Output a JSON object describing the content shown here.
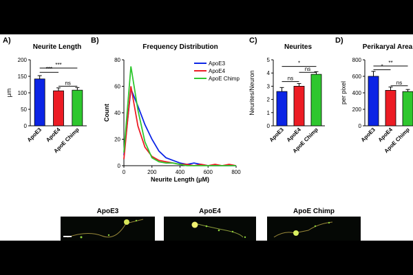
{
  "colors": {
    "apoe3": "#0b24e5",
    "apoe4": "#ec1c24",
    "chimp": "#2ec72e"
  },
  "chart_data": [
    {
      "panel": "A)",
      "type": "bar",
      "title": "Neurite Length",
      "ylabel": "μm",
      "categories": [
        "ApoE3",
        "ApoE4",
        "ApoE Chimp"
      ],
      "values": [
        142,
        106,
        108
      ],
      "errors": [
        10,
        9,
        8
      ],
      "ylim": [
        0,
        200
      ],
      "yticks": [
        0,
        50,
        100,
        150,
        200
      ],
      "significance": [
        {
          "from": 0,
          "to": 1,
          "label": "***",
          "y": 162
        },
        {
          "from": 0,
          "to": 2,
          "label": "***",
          "y": 175
        },
        {
          "from": 1,
          "to": 2,
          "label": "ns",
          "y": 120
        }
      ]
    },
    {
      "panel": "B)",
      "type": "line",
      "title": "Frequency Distribution",
      "xlabel": "Neurite Length (μM)",
      "ylabel": "Count",
      "xlim": [
        0,
        800
      ],
      "ylim": [
        0,
        80
      ],
      "xticks": [
        0,
        200,
        400,
        600,
        800
      ],
      "yticks": [
        0,
        20,
        40,
        60,
        80
      ],
      "x": [
        0,
        50,
        100,
        150,
        200,
        250,
        300,
        350,
        400,
        450,
        500,
        550,
        600,
        650,
        700,
        750,
        800
      ],
      "series": [
        {
          "name": "ApoE3",
          "values": [
            8,
            58,
            45,
            31,
            20,
            11,
            6,
            4,
            2,
            1,
            2,
            1,
            0,
            0,
            0,
            0,
            0
          ]
        },
        {
          "name": "ApoE4",
          "values": [
            5,
            60,
            30,
            14,
            7,
            4,
            3,
            2,
            1,
            1,
            0,
            1,
            0,
            1,
            0,
            1,
            0
          ]
        },
        {
          "name": "ApoE Chimp",
          "values": [
            10,
            75,
            42,
            18,
            6,
            3,
            2,
            2,
            1,
            0,
            0,
            0,
            0,
            0,
            0,
            0,
            0
          ]
        }
      ]
    },
    {
      "panel": "C)",
      "type": "bar",
      "title": "Neurites",
      "ylabel": "Neurites/Neuron",
      "categories": [
        "ApoE3",
        "ApoE4",
        "ApoE Chimp"
      ],
      "values": [
        2.6,
        3.0,
        3.9
      ],
      "errors": [
        0.3,
        0.2,
        0.2
      ],
      "ylim": [
        0,
        5
      ],
      "yticks": [
        0,
        1,
        2,
        3,
        4,
        5
      ],
      "significance": [
        {
          "from": 0,
          "to": 1,
          "label": "ns",
          "y": 3.35
        },
        {
          "from": 0,
          "to": 2,
          "label": "*",
          "y": 4.5
        },
        {
          "from": 1,
          "to": 2,
          "label": "ns",
          "y": 4.05
        }
      ]
    },
    {
      "panel": "D)",
      "type": "bar",
      "title": "Perikaryal Area",
      "ylabel": "per pixel",
      "categories": [
        "ApoE3",
        "ApoE4",
        "ApoE Chimp"
      ],
      "values": [
        600,
        430,
        415
      ],
      "errors": [
        60,
        40,
        25
      ],
      "ylim": [
        0,
        800
      ],
      "yticks": [
        0,
        200,
        400,
        600,
        800
      ],
      "significance": [
        {
          "from": 0,
          "to": 1,
          "label": "*",
          "y": 680
        },
        {
          "from": 0,
          "to": 2,
          "label": "**",
          "y": 725
        },
        {
          "from": 1,
          "to": 2,
          "label": "ns",
          "y": 485
        }
      ]
    }
  ],
  "micrographs": [
    {
      "label": "ApoE3"
    },
    {
      "label": "ApoE4"
    },
    {
      "label": "ApoE Chimp"
    }
  ]
}
